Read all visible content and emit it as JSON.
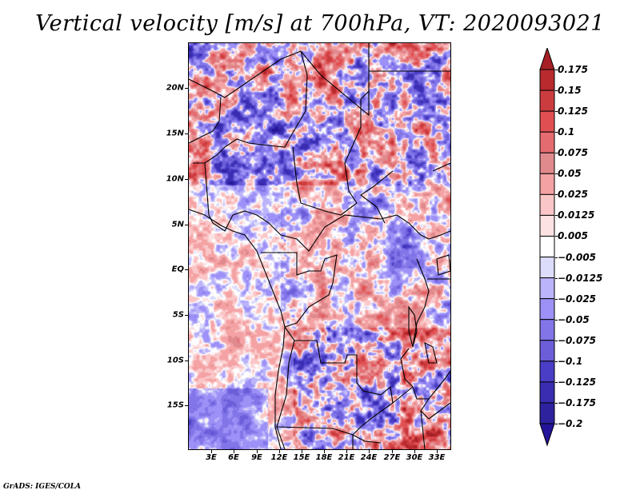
{
  "title": "Vertical velocity [m/s] at 700hPa, VT: 2020093021",
  "credit": "GrADS: IGES/COLA",
  "chart_data": {
    "type": "heatmap",
    "title": "Vertical velocity [m/s] at 700hPa, VT: 2020093021",
    "variable": "Vertical velocity",
    "units": "m/s",
    "level": "700hPa",
    "valid_time": "2020093021",
    "xlabel": "",
    "ylabel": "",
    "x_range_deg": [
      0,
      35
    ],
    "y_range_deg": [
      -20,
      25
    ],
    "x_ticks": [
      {
        "value": 3,
        "label": "3E"
      },
      {
        "value": 6,
        "label": "6E"
      },
      {
        "value": 9,
        "label": "9E"
      },
      {
        "value": 12,
        "label": "12E"
      },
      {
        "value": 15,
        "label": "15E"
      },
      {
        "value": 18,
        "label": "18E"
      },
      {
        "value": 21,
        "label": "21E"
      },
      {
        "value": 24,
        "label": "24E"
      },
      {
        "value": 27,
        "label": "27E"
      },
      {
        "value": 30,
        "label": "30E"
      },
      {
        "value": 33,
        "label": "33E"
      }
    ],
    "y_ticks": [
      {
        "value": 20,
        "label": "20N"
      },
      {
        "value": 15,
        "label": "15N"
      },
      {
        "value": 10,
        "label": "10N"
      },
      {
        "value": 5,
        "label": "5N"
      },
      {
        "value": 0,
        "label": "EQ"
      },
      {
        "value": -5,
        "label": "5S"
      },
      {
        "value": -10,
        "label": "10S"
      },
      {
        "value": -15,
        "label": "15S"
      }
    ],
    "colorbar": {
      "orientation": "vertical",
      "placement": "right",
      "extend": "both",
      "levels": [
        0.175,
        0.15,
        0.125,
        0.1,
        0.075,
        0.05,
        0.025,
        0.0125,
        0.005,
        -0.005,
        -0.0125,
        -0.025,
        -0.05,
        -0.075,
        -0.1,
        -0.125,
        -0.175,
        -0.2
      ],
      "labels": [
        "0.175",
        "0.15",
        "0.125",
        "0.1",
        "0.075",
        "0.05",
        "0.025",
        "0.0125",
        "0.005",
        "−0.005",
        "−0.0125",
        "−0.025",
        "−0.05",
        "−0.075",
        "−0.1",
        "−0.125",
        "−0.175",
        "−0.2"
      ],
      "colors": [
        "#a61f26",
        "#b82a2e",
        "#cb3c3f",
        "#e05052",
        "#e46c70",
        "#e08a8e",
        "#f4a2a4",
        "#fac6c7",
        "#fde2e3",
        "#ffffff",
        "#dcdcfb",
        "#bcb4fa",
        "#9d90f6",
        "#8275e8",
        "#6b5ed8",
        "#4a3ec6",
        "#3a2db2",
        "#2e229e",
        "#24149a"
      ]
    }
  }
}
